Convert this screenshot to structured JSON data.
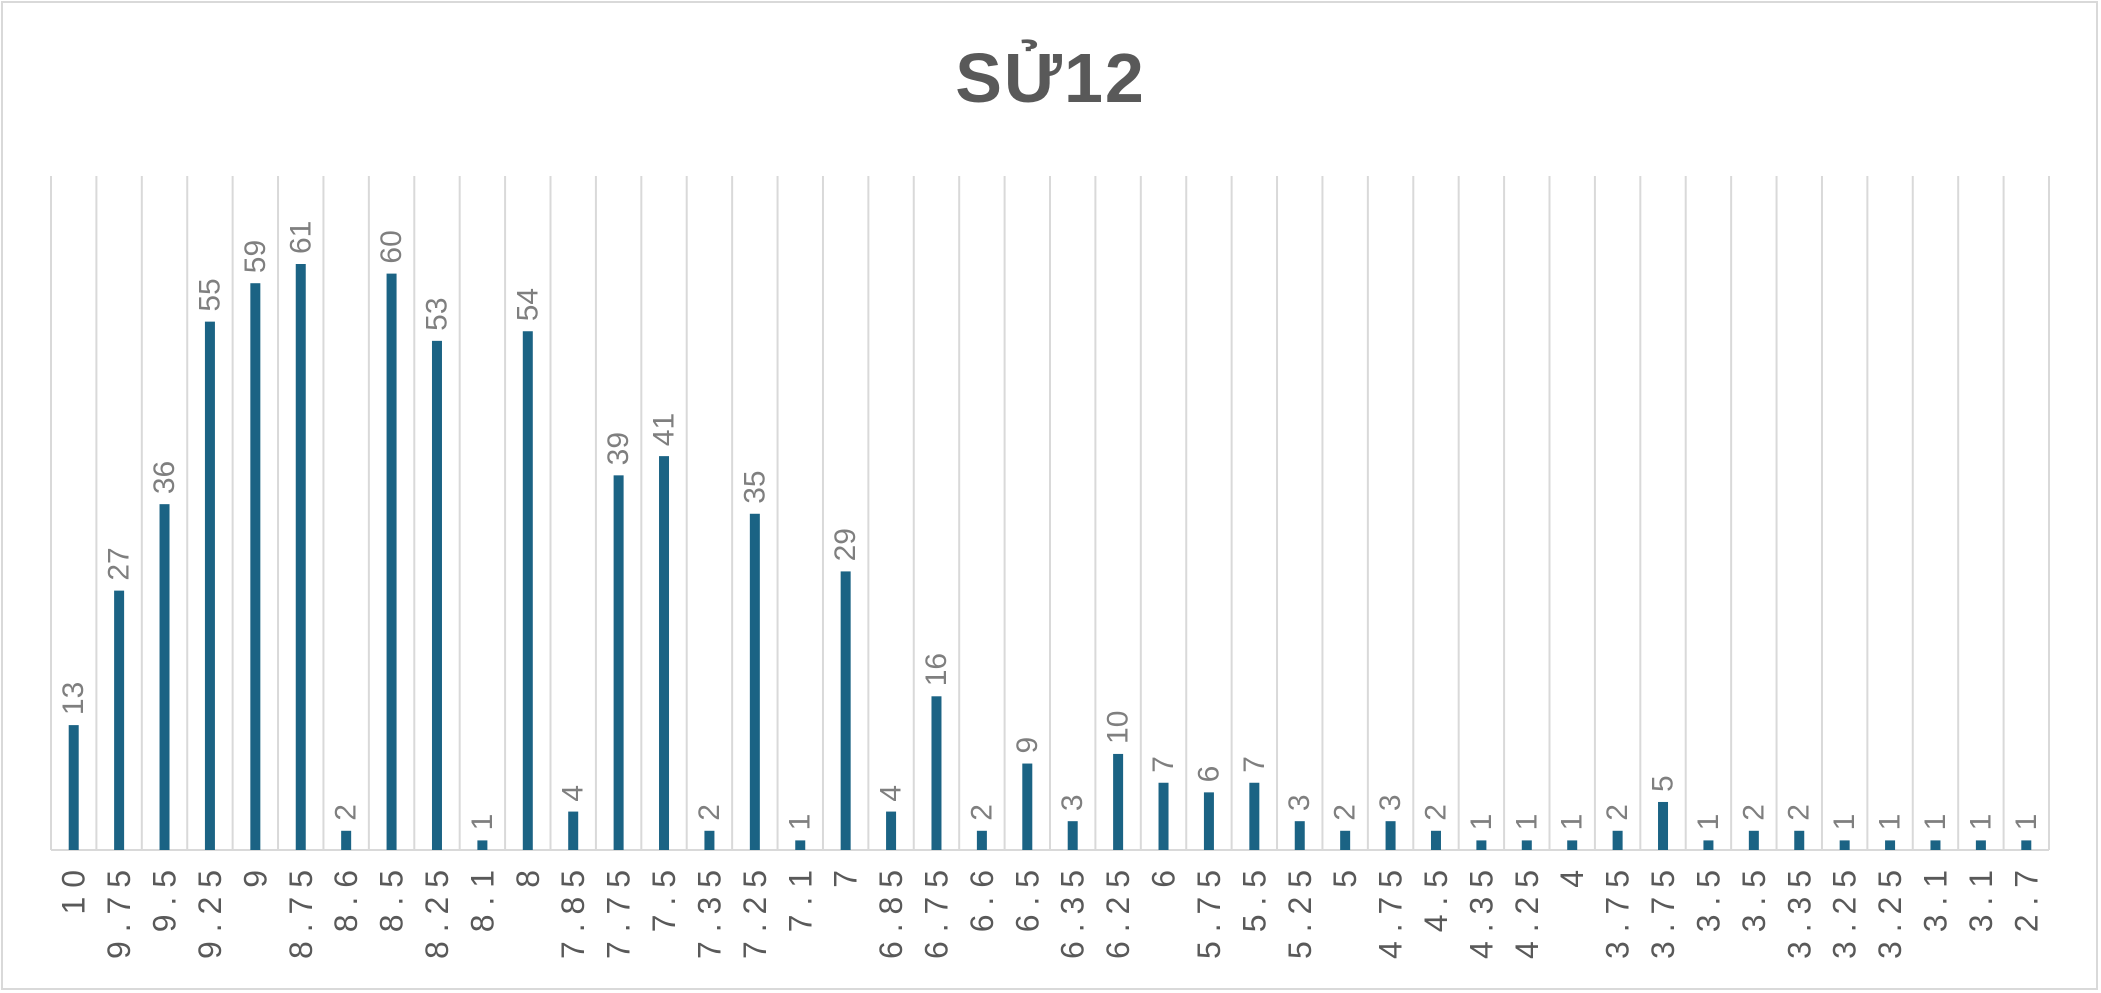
{
  "chart_data": {
    "type": "bar",
    "title": "SỬ12",
    "xlabel": "",
    "ylabel": "",
    "categories": [
      "10",
      "9.75",
      "9.5",
      "9.25",
      "9",
      "8.75",
      "8.6",
      "8.5",
      "8.25",
      "8.1",
      "8",
      "7.85",
      "7.75",
      "7.5",
      "7.35",
      "7.25",
      "7.1",
      "7",
      "6.85",
      "6.75",
      "6.6",
      "6.5",
      "6.35",
      "6.25",
      "6",
      "5.75",
      "5.5",
      "5.25",
      "5",
      "4.75",
      "4.5",
      "4.35",
      "4.25",
      "4",
      "3.75",
      "3.75",
      "3.5",
      "3.5",
      "3.35",
      "3.25",
      "3.25",
      "3.1",
      "3.1",
      "2.7"
    ],
    "values": [
      13,
      27,
      36,
      55,
      59,
      61,
      2,
      60,
      53,
      1,
      54,
      4,
      39,
      41,
      2,
      35,
      1,
      29,
      4,
      16,
      2,
      9,
      3,
      10,
      7,
      6,
      7,
      3,
      2,
      3,
      2,
      1,
      1,
      1,
      2,
      5,
      1,
      2,
      2,
      1,
      1,
      1,
      1,
      1
    ],
    "ylim": [
      0,
      70
    ],
    "grid": "vertical",
    "bar_color": "#1b6384",
    "grid_color": "#d9d9d9",
    "label_color": "#7f7f7f",
    "data_labels": true
  }
}
